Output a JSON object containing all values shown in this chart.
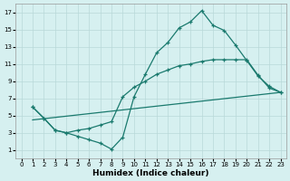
{
  "xlabel": "Humidex (Indice chaleur)",
  "background_color": "#d6f0f0",
  "grid_color": "#b8d8d8",
  "line_color": "#1a7a6e",
  "xlim": [
    -0.5,
    23.5
  ],
  "ylim": [
    0,
    18
  ],
  "xticks": [
    0,
    1,
    2,
    3,
    4,
    5,
    6,
    7,
    8,
    9,
    10,
    11,
    12,
    13,
    14,
    15,
    16,
    17,
    18,
    19,
    20,
    21,
    22,
    23
  ],
  "yticks": [
    1,
    3,
    5,
    7,
    9,
    11,
    13,
    15,
    17
  ],
  "line1_x": [
    1,
    2,
    3,
    4,
    5,
    6,
    7,
    8,
    9,
    10,
    11,
    12,
    13,
    14,
    15,
    16,
    17,
    18,
    19,
    20,
    21,
    22,
    23
  ],
  "line1_y": [
    6.0,
    4.7,
    3.3,
    3.0,
    2.6,
    2.2,
    1.8,
    1.1,
    2.5,
    7.2,
    9.8,
    12.3,
    13.5,
    15.2,
    15.9,
    17.2,
    15.5,
    14.9,
    13.2,
    11.4,
    9.6,
    8.4,
    7.7
  ],
  "line2_x": [
    1,
    2,
    3,
    4,
    5,
    6,
    7,
    8,
    9,
    10,
    11,
    12,
    13,
    14,
    15,
    16,
    17,
    18,
    19,
    20,
    21,
    22,
    23
  ],
  "line2_y": [
    6.0,
    4.7,
    3.3,
    3.0,
    3.3,
    3.5,
    3.9,
    4.3,
    7.2,
    8.3,
    9.0,
    9.8,
    10.3,
    10.8,
    11.0,
    11.3,
    11.5,
    11.5,
    11.5,
    11.5,
    9.7,
    8.2,
    7.7
  ],
  "line3_x": [
    1,
    23
  ],
  "line3_y": [
    4.5,
    7.7
  ],
  "figsize": [
    3.2,
    2.0
  ],
  "dpi": 100
}
